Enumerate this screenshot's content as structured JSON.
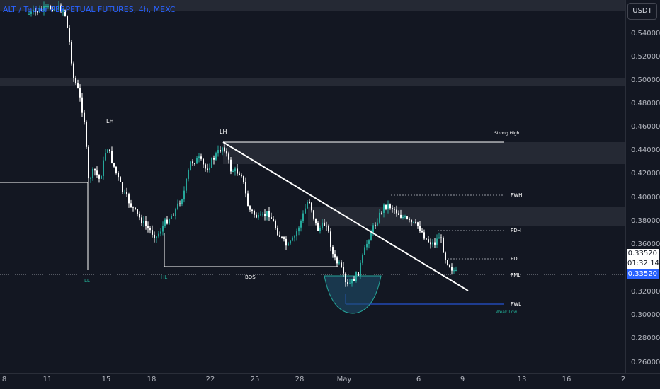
{
  "header": {
    "symbol_title": "ALT / Tether PERPETUAL FUTURES, 4h, MEXC",
    "currency_button": "USDT"
  },
  "price_axis": {
    "ticks": [
      "0.54000",
      "0.52000",
      "0.50000",
      "0.48000",
      "0.46000",
      "0.44000",
      "0.42000",
      "0.40000",
      "0.38000",
      "0.36000",
      "0.32000",
      "0.30000",
      "0.28000",
      "0.26000"
    ],
    "last_price": "0.33520",
    "countdown": "01:32:14",
    "current_price_tag": "0.33520"
  },
  "time_axis": {
    "ticks": [
      "8",
      "11",
      "15",
      "18",
      "22",
      "25",
      "28",
      "May",
      "6",
      "9",
      "13",
      "16",
      "2"
    ]
  },
  "annotations": {
    "lh_left": "LH",
    "lh_right": "LH",
    "strong_high": "Strong High",
    "pwh": "PWH",
    "pdh": "PDH",
    "pdl": "PDL",
    "pml": "PML",
    "pwl": "PWL",
    "weak_low": "Weak Low",
    "ll": "LL",
    "hl": "HL",
    "bos": "BOS"
  },
  "colors": {
    "background": "#131722",
    "bull": "#26a69a",
    "bear": "#ffffff",
    "accent": "#2962ff",
    "label_blue": "#22ab94"
  }
}
